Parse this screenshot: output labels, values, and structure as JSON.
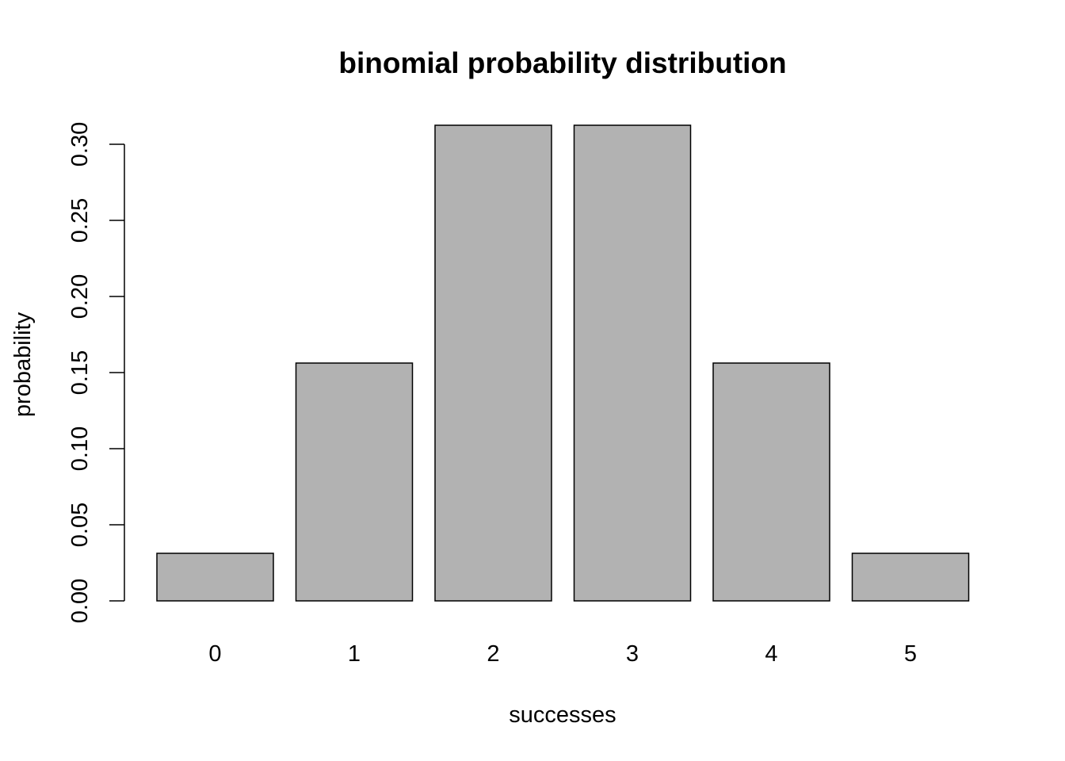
{
  "chart_data": {
    "type": "bar",
    "title": "binomial probability distribution",
    "xlabel": "successes",
    "ylabel": "probability",
    "categories": [
      "0",
      "1",
      "2",
      "3",
      "4",
      "5"
    ],
    "values": [
      0.03125,
      0.15625,
      0.3125,
      0.3125,
      0.15625,
      0.03125
    ],
    "ylim": [
      0,
      0.3125
    ],
    "yticks": [
      0,
      0.05,
      0.1,
      0.15,
      0.2,
      0.25,
      0.3
    ],
    "ytick_labels": [
      "0.00",
      "0.05",
      "0.10",
      "0.15",
      "0.20",
      "0.25",
      "0.30"
    ],
    "bar_color": "#b2b2b2",
    "grid": false,
    "legend": "none"
  }
}
